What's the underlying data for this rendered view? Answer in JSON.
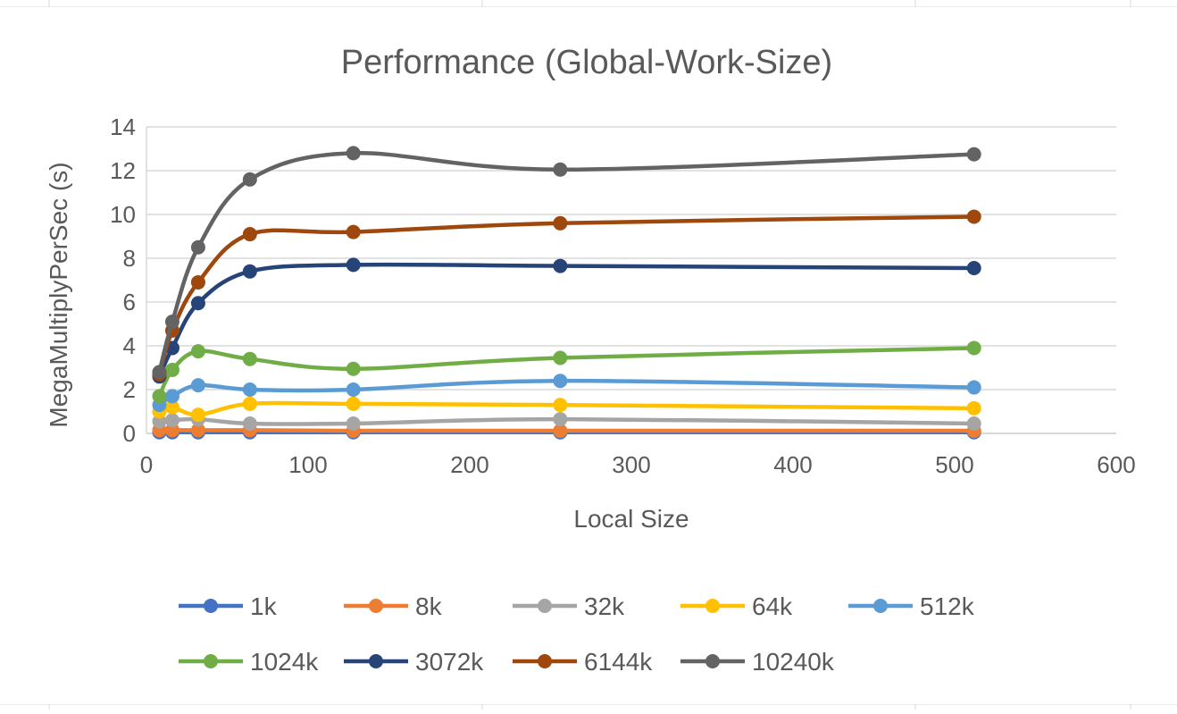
{
  "chart_data": {
    "type": "line",
    "title": "Performance (Global-Work-Size)",
    "xlabel": "Local Size",
    "ylabel": "MegaMultiplyPerSec (s)",
    "xlim": [
      0,
      600
    ],
    "ylim": [
      0,
      14
    ],
    "xticks": [
      0,
      100,
      200,
      300,
      400,
      500,
      600
    ],
    "yticks": [
      0,
      2,
      4,
      6,
      8,
      10,
      12,
      14
    ],
    "grid": "horizontal",
    "smooth": true,
    "legend_position": "bottom",
    "x": [
      8,
      16,
      32,
      64,
      128,
      256,
      512
    ],
    "series": [
      {
        "name": "1k",
        "color": "#4472C4",
        "values": [
          0.05,
          0.05,
          0.05,
          0.05,
          0.05,
          0.05,
          0.05
        ]
      },
      {
        "name": "8k",
        "color": "#ED7D31",
        "values": [
          0.15,
          0.15,
          0.15,
          0.15,
          0.12,
          0.12,
          0.12
        ]
      },
      {
        "name": "32k",
        "color": "#A5A5A5",
        "values": [
          0.55,
          0.6,
          0.65,
          0.45,
          0.45,
          0.65,
          0.45
        ]
      },
      {
        "name": "64k",
        "color": "#FFC000",
        "values": [
          1.0,
          1.2,
          0.85,
          1.35,
          1.35,
          1.3,
          1.15
        ]
      },
      {
        "name": "512k",
        "color": "#5B9BD5",
        "values": [
          1.3,
          1.7,
          2.2,
          2.0,
          2.0,
          2.4,
          2.1
        ]
      },
      {
        "name": "1024k",
        "color": "#70AD47",
        "values": [
          1.7,
          2.9,
          3.75,
          3.4,
          2.95,
          3.45,
          3.9
        ]
      },
      {
        "name": "3072k",
        "color": "#264478",
        "values": [
          2.6,
          3.9,
          5.95,
          7.4,
          7.7,
          7.65,
          7.55
        ]
      },
      {
        "name": "6144k",
        "color": "#9E480E",
        "values": [
          2.7,
          4.7,
          6.9,
          9.1,
          9.2,
          9.6,
          9.9
        ]
      },
      {
        "name": "10240k",
        "color": "#636363",
        "values": [
          2.8,
          5.1,
          8.5,
          11.6,
          12.8,
          12.05,
          12.75
        ]
      }
    ]
  }
}
